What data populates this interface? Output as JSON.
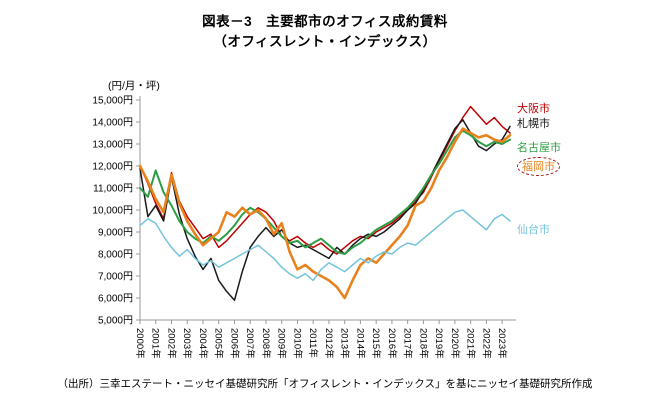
{
  "title": {
    "line1": "図表－3　主要都市のオフィス成約賃料",
    "line2": "（オフィスレント・インデックス）"
  },
  "unit_label": "(円/月・坪)",
  "source": "（出所）三幸エステート・ニッセイ基礎研究所「オフィスレント・インデックス」を基にニッセイ基礎研究所作成",
  "chart_data": {
    "type": "line",
    "title": "主要都市のオフィス成約賃料（オフィスレント・インデックス）",
    "ylabel": "(円/月・坪)",
    "ylim": [
      5000,
      15000
    ],
    "y_step": 1000,
    "y_suffix": "円",
    "grid": false,
    "legend_position": "right-of-line-ends",
    "points_per_year": 2,
    "x_tick_labels": [
      "2000年",
      "2001年",
      "2002年",
      "2003年",
      "2004年",
      "2005年",
      "2006年",
      "2007年",
      "2008年",
      "2009年",
      "2010年",
      "2011年",
      "2012年",
      "2013年",
      "2014年",
      "2015年",
      "2016年",
      "2017年",
      "2018年",
      "2019年",
      "2020年",
      "2021年",
      "2022年",
      "2023年"
    ],
    "series": [
      {
        "name": "大阪市",
        "color": "#c00000",
        "width": 1.5,
        "highlight": false,
        "values": [
          12000,
          11200,
          10300,
          9600,
          11700,
          10400,
          9700,
          9200,
          8700,
          8900,
          8300,
          8600,
          9000,
          9400,
          9800,
          10100,
          9900,
          9500,
          8800,
          8600,
          8800,
          8500,
          8300,
          8500,
          8200,
          8000,
          8300,
          8600,
          8800,
          8700,
          9000,
          9200,
          9400,
          9700,
          10000,
          10400,
          10800,
          11500,
          12200,
          12900,
          13600,
          14200,
          14700,
          14300,
          13900,
          14200,
          13800,
          13500
        ]
      },
      {
        "name": "札幌市",
        "color": "#1a1a1a",
        "width": 1.5,
        "highlight": false,
        "values": [
          11900,
          9700,
          10200,
          9500,
          11500,
          9800,
          8700,
          7900,
          7300,
          7800,
          6800,
          6300,
          5900,
          7200,
          8300,
          8800,
          9200,
          8800,
          9100,
          8500,
          8300,
          8400,
          8200,
          8000,
          7800,
          8300,
          8000,
          8400,
          8700,
          8900,
          8800,
          9000,
          9300,
          9600,
          10000,
          10300,
          10900,
          11600,
          12300,
          13000,
          13700,
          14100,
          13500,
          12900,
          12700,
          13000,
          13200,
          13800
        ]
      },
      {
        "name": "名古屋市",
        "color": "#2e9e46",
        "width": 2,
        "highlight": false,
        "values": [
          11000,
          10600,
          11800,
          10800,
          10200,
          9500,
          9000,
          8700,
          8500,
          8800,
          8600,
          8900,
          9300,
          9800,
          10100,
          9900,
          9600,
          9200,
          8800,
          8500,
          8600,
          8300,
          8500,
          8700,
          8400,
          8100,
          8000,
          8300,
          8500,
          8800,
          9100,
          9300,
          9500,
          9800,
          10100,
          10500,
          11000,
          11600,
          12100,
          12700,
          13300,
          13600,
          13400,
          13100,
          12900,
          13100,
          13000,
          13200
        ]
      },
      {
        "name": "福岡市",
        "color": "#e8821e",
        "width": 2.6,
        "highlight": true,
        "values": [
          12000,
          11300,
          10500,
          9900,
          11600,
          10300,
          9500,
          8900,
          8400,
          8700,
          9000,
          9900,
          9700,
          10100,
          9800,
          10000,
          9600,
          8900,
          9400,
          8100,
          7300,
          7500,
          7200,
          7000,
          6800,
          6500,
          6000,
          6800,
          7500,
          7800,
          7600,
          8000,
          8400,
          8800,
          9300,
          10200,
          10400,
          11000,
          11800,
          12400,
          13100,
          13700,
          13500,
          13300,
          13400,
          13200,
          13100,
          13400
        ]
      },
      {
        "name": "仙台市",
        "color": "#74c3dd",
        "width": 1.5,
        "highlight": false,
        "values": [
          9300,
          9600,
          9400,
          8800,
          8300,
          7900,
          8200,
          7800,
          7500,
          7700,
          7400,
          7600,
          7800,
          8000,
          8200,
          8400,
          8100,
          7800,
          7400,
          7100,
          6900,
          7100,
          6800,
          7300,
          7600,
          7400,
          7200,
          7500,
          7800,
          7600,
          7900,
          8100,
          8000,
          8300,
          8500,
          8400,
          8700,
          9000,
          9300,
          9600,
          9900,
          10000,
          9700,
          9400,
          9100,
          9600,
          9800,
          9500
        ]
      }
    ]
  }
}
